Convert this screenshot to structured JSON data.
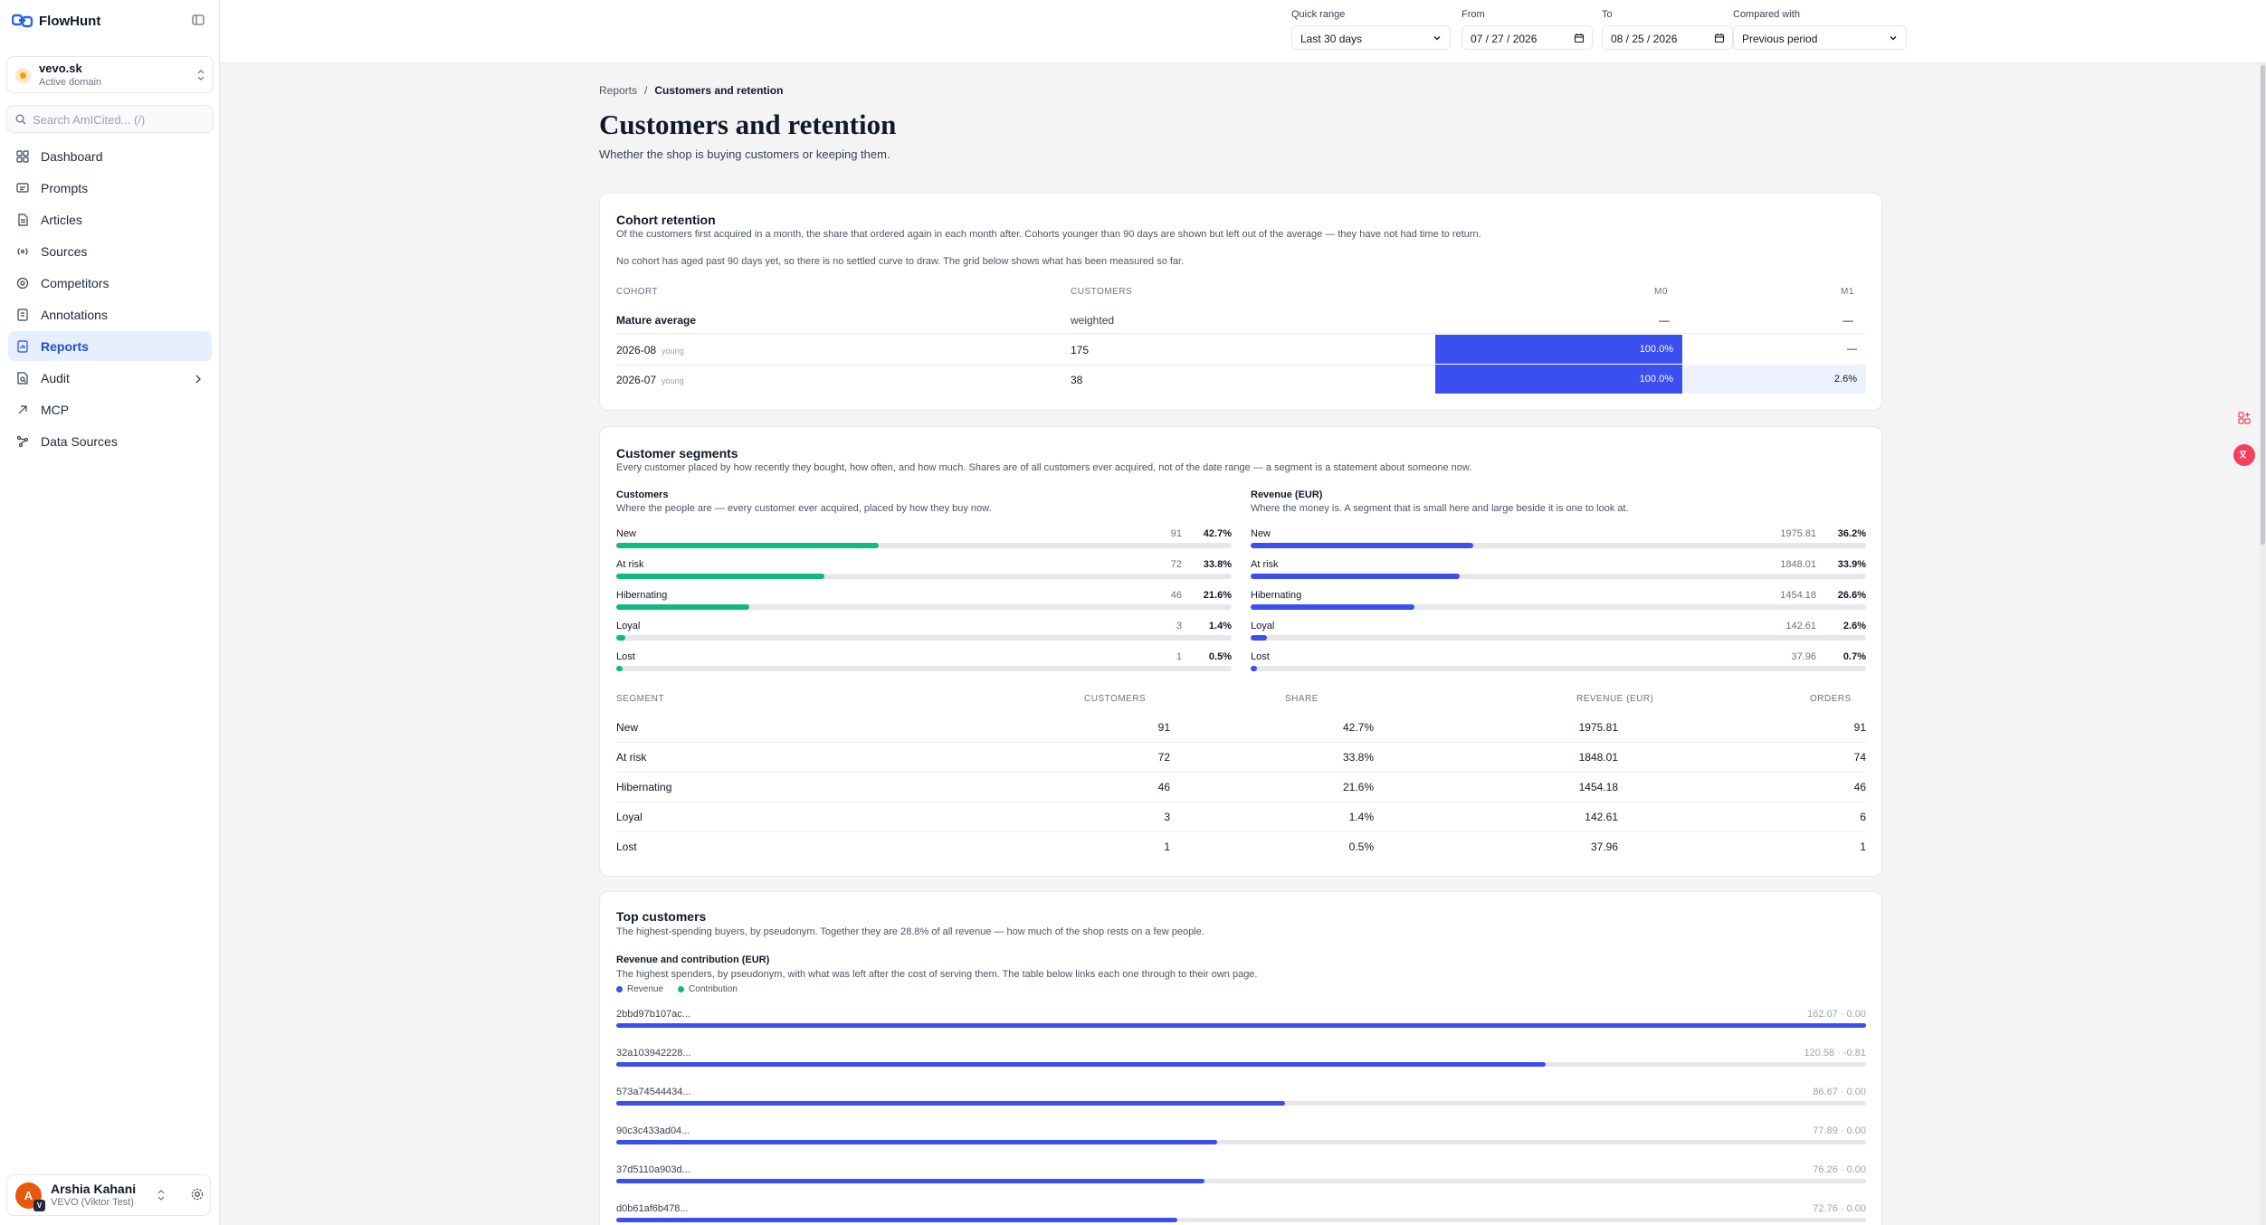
{
  "app": {
    "name": "FlowHunt"
  },
  "domain": {
    "name": "vevo.sk",
    "status": "Active domain"
  },
  "search": {
    "placeholder": "Search AmICited... (/)"
  },
  "nav": [
    {
      "label": "Dashboard",
      "icon": "dashboard-icon"
    },
    {
      "label": "Prompts",
      "icon": "prompts-icon"
    },
    {
      "label": "Articles",
      "icon": "articles-icon"
    },
    {
      "label": "Sources",
      "icon": "sources-icon"
    },
    {
      "label": "Competitors",
      "icon": "competitors-icon"
    },
    {
      "label": "Annotations",
      "icon": "annotations-icon"
    },
    {
      "label": "Reports",
      "icon": "reports-icon",
      "active": true
    },
    {
      "label": "Audit",
      "icon": "audit-icon",
      "has_children": true
    },
    {
      "label": "MCP",
      "icon": "mcp-icon"
    },
    {
      "label": "Data Sources",
      "icon": "data-sources-icon"
    }
  ],
  "user": {
    "name": "Arshia Kahani",
    "org": "VEVO (Viktor Test)",
    "initial": "A",
    "badge": "V"
  },
  "filters": {
    "quick_range_label": "Quick range",
    "quick_range_value": "Last 30 days",
    "from_label": "From",
    "from_value": "07 / 27 / 2026",
    "to_label": "To",
    "to_value": "08 / 25 / 2026",
    "compared_label": "Compared with",
    "compared_value": "Previous period"
  },
  "breadcrumb": {
    "parent": "Reports",
    "separator": "/",
    "current": "Customers and retention"
  },
  "page": {
    "title": "Customers and retention",
    "subtitle": "Whether the shop is buying customers or keeping them."
  },
  "cohort": {
    "title": "Cohort retention",
    "desc": "Of the customers first acquired in a month, the share that ordered again in each month after. Cohorts younger than 90 days are shown but left out of the average — they have not had time to return.",
    "note": "No cohort has aged past 90 days yet, so there is no settled curve to draw. The grid below shows what has been measured so far.",
    "headers": {
      "cohort": "COHORT",
      "customers": "CUSTOMERS",
      "m0": "M0",
      "m1": "M1"
    },
    "average": {
      "label": "Mature average",
      "customers": "weighted",
      "m0": "—",
      "m1": "—"
    },
    "rows": [
      {
        "cohort": "2026-08",
        "tag": "young",
        "customers": "175",
        "m0": "100.0%",
        "m1": "—",
        "m0_level": 1.0,
        "m1_level": null
      },
      {
        "cohort": "2026-07",
        "tag": "young",
        "customers": "38",
        "m0": "100.0%",
        "m1": "2.6%",
        "m0_level": 1.0,
        "m1_level": 0.026
      }
    ]
  },
  "segments": {
    "title": "Customer segments",
    "desc": "Every customer placed by how recently they bought, how often, and how much. Shares are of all customers ever acquired, not of the date range — a segment is a statement about someone now.",
    "customers_title": "Customers",
    "customers_desc": "Where the people are — every customer ever acquired, placed by how they buy now.",
    "revenue_title": "Revenue (EUR)",
    "revenue_desc": "Where the money is. A segment that is small here and large beside it is one to look at.",
    "customer_color": "#10b981",
    "revenue_color": "#3b4ef0",
    "customer_bars": [
      {
        "label": "New",
        "value": "91",
        "pct": "42.7%",
        "level": 0.427
      },
      {
        "label": "At risk",
        "value": "72",
        "pct": "33.8%",
        "level": 0.338
      },
      {
        "label": "Hibernating",
        "value": "46",
        "pct": "21.6%",
        "level": 0.216
      },
      {
        "label": "Loyal",
        "value": "3",
        "pct": "1.4%",
        "level": 0.014
      },
      {
        "label": "Lost",
        "value": "1",
        "pct": "0.5%",
        "level": 0.005
      }
    ],
    "revenue_bars": [
      {
        "label": "New",
        "value": "1975.81",
        "pct": "36.2%",
        "level": 0.362
      },
      {
        "label": "At risk",
        "value": "1848.01",
        "pct": "33.9%",
        "level": 0.339
      },
      {
        "label": "Hibernating",
        "value": "1454.18",
        "pct": "26.6%",
        "level": 0.266
      },
      {
        "label": "Loyal",
        "value": "142.61",
        "pct": "2.6%",
        "level": 0.026
      },
      {
        "label": "Lost",
        "value": "37.96",
        "pct": "0.7%",
        "level": 0.007
      }
    ],
    "table_headers": {
      "segment": "SEGMENT",
      "customers": "CUSTOMERS",
      "share": "SHARE",
      "revenue": "REVENUE (EUR)",
      "orders": "ORDERS"
    },
    "table_rows": [
      {
        "segment": "New",
        "customers": "91",
        "share": "42.7%",
        "revenue": "1975.81",
        "orders": "91"
      },
      {
        "segment": "At risk",
        "customers": "72",
        "share": "33.8%",
        "revenue": "1848.01",
        "orders": "74"
      },
      {
        "segment": "Hibernating",
        "customers": "46",
        "share": "21.6%",
        "revenue": "1454.18",
        "orders": "46"
      },
      {
        "segment": "Loyal",
        "customers": "3",
        "share": "1.4%",
        "revenue": "142.61",
        "orders": "6"
      },
      {
        "segment": "Lost",
        "customers": "1",
        "share": "0.5%",
        "revenue": "37.96",
        "orders": "1"
      }
    ]
  },
  "top_customers": {
    "title": "Top customers",
    "desc": "The highest-spending buyers, by pseudonym. Together they are 28.8% of all revenue — how much of the shop rests on a few people.",
    "chart_title": "Revenue and contribution (EUR)",
    "chart_desc": "The highest spenders, by pseudonym, with what was left after the cost of serving them. The table below links each one through to their own page.",
    "legend_revenue": "Revenue",
    "legend_contribution": "Contribution",
    "revenue_color": "#3b4ef0",
    "contribution_color": "#10b981"
  },
  "chart_data": {
    "type": "bar",
    "title": "Revenue and contribution (EUR)",
    "categories": [
      "2bbd97b107ac...",
      "32a103942228...",
      "573a74544434...",
      "90c3c433ad04...",
      "37d5110a903d...",
      "d0b61af6b478..."
    ],
    "series": [
      {
        "name": "Revenue",
        "values": [
          162.07,
          120.58,
          86.67,
          77.89,
          76.26,
          72.76
        ]
      },
      {
        "name": "Contribution",
        "values": [
          0.0,
          -0.81,
          0.0,
          0.0,
          0.0,
          0.0
        ]
      }
    ],
    "value_labels": [
      "162.07 · 0.00",
      "120.58 · -0.81",
      "86.67 · 0.00",
      "77.89 · 0.00",
      "76.26 · 0.00",
      "72.76 · 0.00"
    ],
    "xlim": [
      0,
      162.07
    ]
  }
}
